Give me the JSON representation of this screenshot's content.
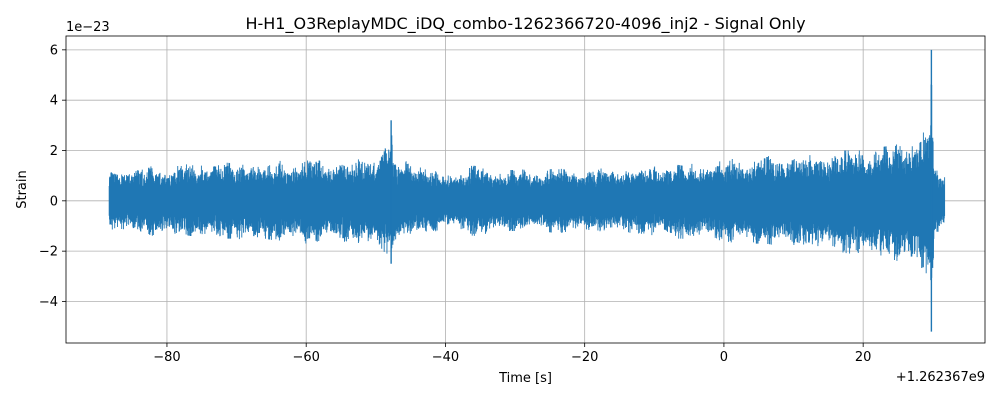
{
  "chart_data": {
    "type": "line",
    "title": "H-H1_O3ReplayMDC_iDQ_combo-1262366720-4096_inj2 - Signal Only",
    "xlabel": "Time [s]",
    "ylabel": "Strain",
    "x_offset_label": "+1.262367e9",
    "y_scale_label": "1e−23",
    "xlim": [
      -94.5,
      37.5
    ],
    "ylim": [
      -5.65,
      6.55
    ],
    "x_ticks": [
      -80,
      -60,
      -40,
      -20,
      0,
      20
    ],
    "x_tick_labels": [
      "−80",
      "−60",
      "−40",
      "−20",
      "0",
      "20"
    ],
    "y_ticks": [
      -4,
      -2,
      0,
      2,
      4,
      6
    ],
    "y_tick_labels": [
      "−4",
      "−2",
      "0",
      "2",
      "4",
      "6"
    ],
    "grid": true,
    "line_color": "#1f77b4",
    "series": [
      {
        "x_range": [
          -88.3,
          31.7
        ],
        "envelope": {
          "x": [
            -88.3,
            -86,
            -84,
            -82,
            -80,
            -78,
            -76,
            -74,
            -72,
            -70,
            -68,
            -66,
            -64,
            -62,
            -60,
            -58,
            -56,
            -54,
            -52,
            -50,
            -49,
            -48.2,
            -47.8,
            -47.5,
            -47.0,
            -46,
            -44,
            -42,
            -40,
            -38,
            -36,
            -34,
            -32,
            -30,
            -28,
            -26,
            -24,
            -22,
            -20,
            -18,
            -16,
            -14,
            -12,
            -10,
            -8,
            -6,
            -4,
            -2,
            0,
            2,
            4,
            6,
            8,
            10,
            12,
            14,
            16,
            18,
            20,
            22,
            24,
            26,
            27,
            28,
            29,
            29.5,
            29.8,
            30.2,
            31.0,
            31.7
          ],
          "upper": [
            1.1,
            1.3,
            1.2,
            1.4,
            1.3,
            1.5,
            1.4,
            1.5,
            1.6,
            1.4,
            1.6,
            1.3,
            1.6,
            1.5,
            1.7,
            1.6,
            1.6,
            1.5,
            1.7,
            1.9,
            2.1,
            2.4,
            3.2,
            1.5,
            1.4,
            1.6,
            1.5,
            1.3,
            1.0,
            1.3,
            1.4,
            1.3,
            1.2,
            1.3,
            1.2,
            1.2,
            1.3,
            1.2,
            1.2,
            1.3,
            1.2,
            1.3,
            1.3,
            1.4,
            1.5,
            1.4,
            1.5,
            1.5,
            1.6,
            1.7,
            1.6,
            1.8,
            1.7,
            1.9,
            1.8,
            1.9,
            2.0,
            2.0,
            2.1,
            2.1,
            2.2,
            2.3,
            2.5,
            2.6,
            2.8,
            3.0,
            6.0,
            1.3,
            1.1,
            1.1
          ],
          "lower": [
            -1.1,
            -1.3,
            -1.2,
            -1.4,
            -1.3,
            -1.4,
            -1.4,
            -1.5,
            -1.5,
            -1.5,
            -1.6,
            -1.5,
            -1.6,
            -1.6,
            -1.7,
            -1.6,
            -1.7,
            -1.6,
            -1.7,
            -1.9,
            -2.1,
            -2.3,
            -2.5,
            -1.6,
            -1.5,
            -1.5,
            -1.4,
            -1.3,
            -1.0,
            -1.2,
            -1.4,
            -1.3,
            -1.2,
            -1.2,
            -1.2,
            -1.2,
            -1.3,
            -1.2,
            -1.3,
            -1.2,
            -1.3,
            -1.3,
            -1.3,
            -1.4,
            -1.5,
            -1.5,
            -1.6,
            -1.5,
            -1.6,
            -1.7,
            -1.7,
            -1.7,
            -1.8,
            -1.8,
            -1.9,
            -1.9,
            -2.0,
            -2.1,
            -2.1,
            -2.2,
            -2.3,
            -2.5,
            -2.6,
            -2.7,
            -2.9,
            -3.0,
            -5.2,
            -1.3,
            -1.2,
            -1.0
          ]
        },
        "spikes": [
          {
            "x": -47.8,
            "y": 3.2
          },
          {
            "x": -47.8,
            "y": -2.5
          },
          {
            "x": 29.8,
            "y": 6.0
          },
          {
            "x": 29.8,
            "y": -5.2
          }
        ]
      }
    ]
  }
}
